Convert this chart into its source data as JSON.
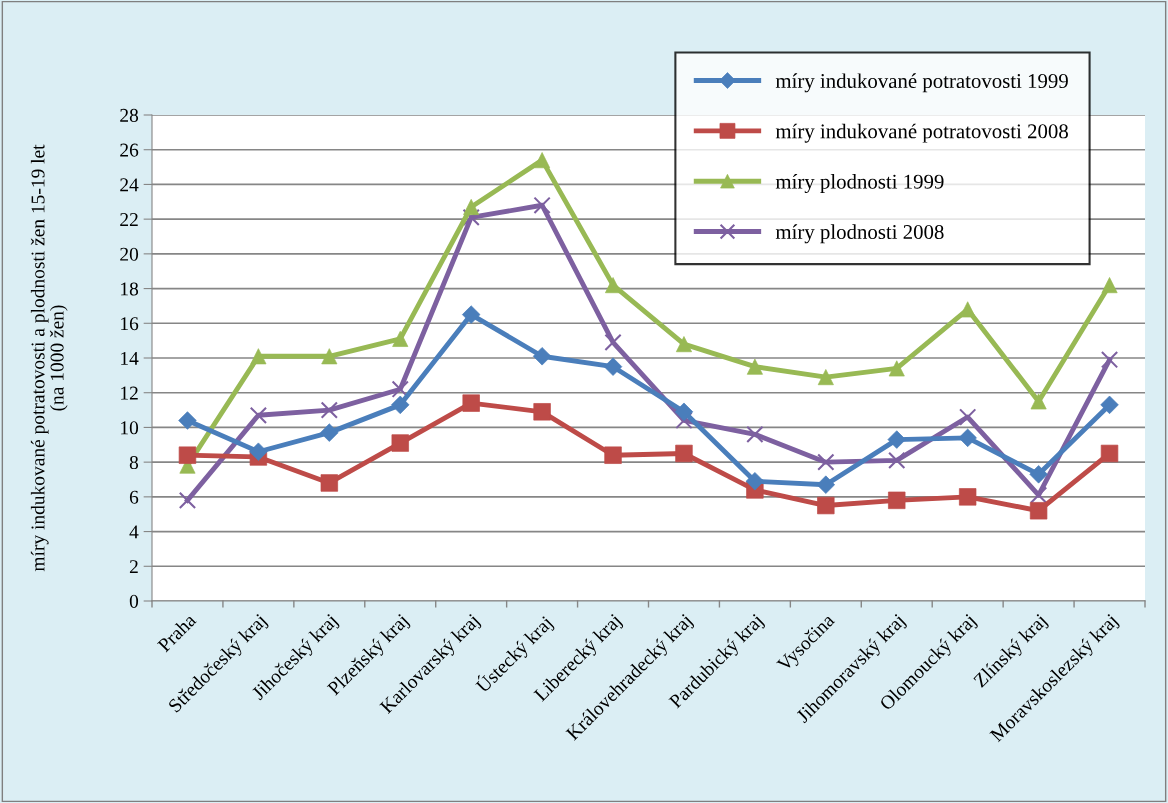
{
  "chart_data": {
    "type": "line",
    "ylabel": "míry indukované potratovosti a plodnosti žen 15-19 let\n(na 1000 žen)",
    "categories": [
      "Praha",
      "Středočeský kraj",
      "Jihočeský kraj",
      "Plzeňský kraj",
      "Karlovarský kraj",
      "Ústecký kraj",
      "Liberecký kraj",
      "Královehradecký kraj",
      "Pardubický kraj",
      "Vysočina",
      "Jihomoravský kraj",
      "Olomoucký kraj",
      "Zlínský kraj",
      "Moravskoslezský kraj"
    ],
    "series": [
      {
        "name": "míry indukované potratovosti 1999",
        "color": "#4a7ebb",
        "marker": "diamond",
        "values": [
          10.4,
          8.6,
          9.7,
          11.3,
          16.5,
          14.1,
          13.5,
          10.9,
          6.9,
          6.7,
          9.3,
          9.4,
          7.3,
          11.3
        ]
      },
      {
        "name": "míry indukované potratovosti 2008",
        "color": "#be4b48",
        "marker": "square",
        "values": [
          8.4,
          8.3,
          6.8,
          9.1,
          11.4,
          10.9,
          8.4,
          8.5,
          6.4,
          5.5,
          5.8,
          6.0,
          5.2,
          8.5
        ]
      },
      {
        "name": "míry plodnosti 1999",
        "color": "#98b954",
        "marker": "triangle",
        "values": [
          7.8,
          14.1,
          14.1,
          15.1,
          22.7,
          25.4,
          18.2,
          14.8,
          13.5,
          12.9,
          13.4,
          16.8,
          11.5,
          18.2
        ]
      },
      {
        "name": "míry plodnosti 2008",
        "color": "#7d60a0",
        "marker": "cross",
        "values": [
          5.8,
          10.7,
          11.0,
          12.2,
          22.1,
          22.8,
          14.9,
          10.4,
          9.6,
          8.0,
          8.1,
          10.6,
          6.1,
          13.9
        ]
      }
    ],
    "ylim": [
      0,
      28
    ],
    "yticks": [
      0,
      2,
      4,
      6,
      8,
      10,
      12,
      14,
      16,
      18,
      20,
      22,
      24,
      26,
      28
    ],
    "grid": "y",
    "legend": "top right",
    "line_style": "solid"
  }
}
